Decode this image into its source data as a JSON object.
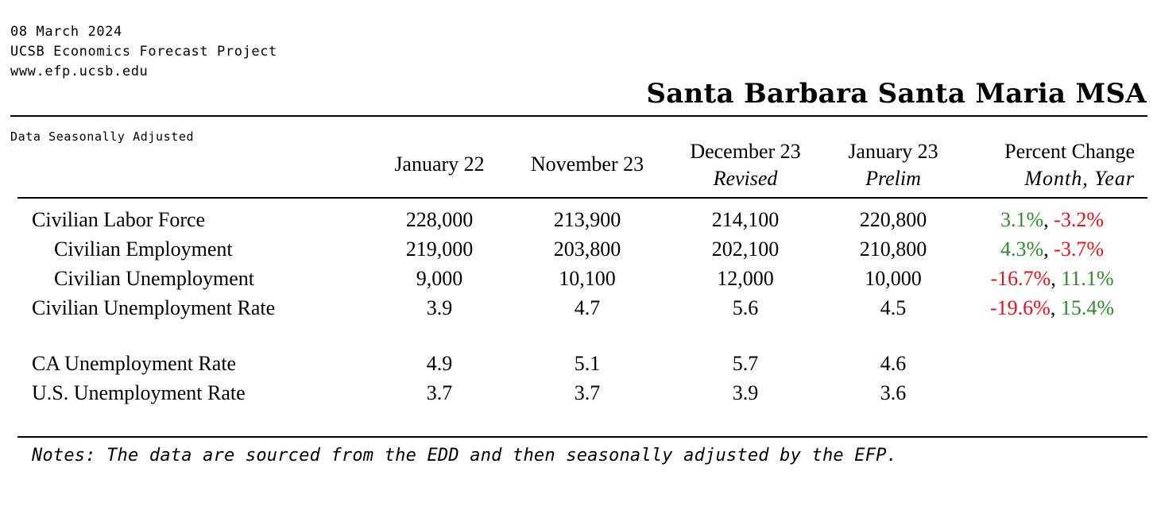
{
  "header": {
    "date": "08 March 2024",
    "organization": "UCSB Economics Forecast Project",
    "website": "www.efp.ucsb.edu",
    "region_title": "Santa Barbara Santa Maria MSA"
  },
  "table": {
    "adjustment_label": "Data Seasonally Adjusted",
    "columns": [
      {
        "label": "January 22",
        "sub": ""
      },
      {
        "label": "November 23",
        "sub": ""
      },
      {
        "label": "December 23",
        "sub": "Revised"
      },
      {
        "label": "January 23",
        "sub": "Prelim"
      },
      {
        "label": "Percent Change",
        "sub": "Month, Year"
      }
    ],
    "rows": [
      {
        "label": "Civilian Labor Force",
        "indent": false,
        "values": [
          "228,000",
          "213,900",
          "214,100",
          "220,800"
        ],
        "month": "3.1%",
        "year": "-3.2%"
      },
      {
        "label": "Civilian Employment",
        "indent": true,
        "values": [
          "219,000",
          "203,800",
          "202,100",
          "210,800"
        ],
        "month": "4.3%",
        "year": "-3.7%"
      },
      {
        "label": "Civilian Unemployment",
        "indent": true,
        "values": [
          "9,000",
          "10,100",
          "12,000",
          "10,000"
        ],
        "month": "-16.7%",
        "year": "11.1%"
      },
      {
        "label": "Civilian Unemployment Rate",
        "indent": false,
        "values": [
          "3.9",
          "4.7",
          "5.6",
          "4.5"
        ],
        "month": "-19.6%",
        "year": "15.4%"
      },
      {
        "label": "CA Unemployment Rate",
        "indent": false,
        "values": [
          "4.9",
          "5.1",
          "5.7",
          "4.6"
        ],
        "month": "",
        "year": ""
      },
      {
        "label": "U.S. Unemployment Rate",
        "indent": false,
        "values": [
          "3.7",
          "3.7",
          "3.9",
          "3.6"
        ],
        "month": "",
        "year": ""
      }
    ]
  },
  "notes": "Notes: The data are sourced from the EDD and then seasonally adjusted by the EFP.",
  "colors": {
    "increase": "#2e8b2e",
    "decrease": "#e0141e"
  }
}
